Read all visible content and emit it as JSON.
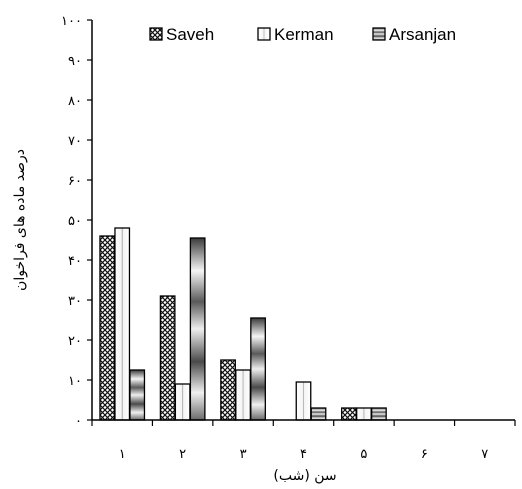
{
  "chart_data": {
    "type": "bar",
    "categories": [
      "۱",
      "۲",
      "۳",
      "۴",
      "۵",
      "۶",
      "۷"
    ],
    "series": [
      {
        "name": "Saveh",
        "values": [
          46,
          31,
          15,
          0,
          3,
          0,
          0
        ],
        "pattern": "crosshatch"
      },
      {
        "name": "Kerman",
        "values": [
          48,
          9,
          12.5,
          9.5,
          3,
          0,
          0
        ],
        "pattern": "white-gradient"
      },
      {
        "name": "Arsanjan",
        "values": [
          12.5,
          45.5,
          25.5,
          3,
          3,
          0,
          0
        ],
        "pattern": "metallic"
      }
    ],
    "ylim": [
      0,
      100
    ],
    "yticks": [
      "۰",
      "۱۰",
      "۲۰",
      "۳۰",
      "۴۰",
      "۵۰",
      "۶۰",
      "۷۰",
      "۸۰",
      "۹۰",
      "۱۰۰"
    ],
    "xlabel": "سن (شب)",
    "ylabel": "درصد ماده های فراخوان",
    "legend_position": "top",
    "grid": false
  }
}
